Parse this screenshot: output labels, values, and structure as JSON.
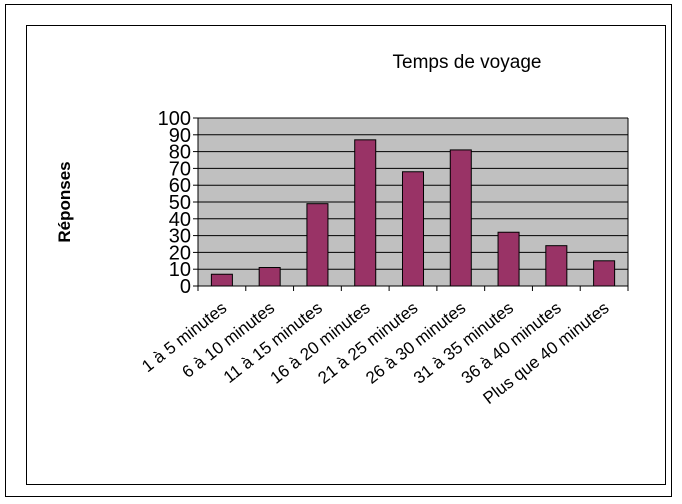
{
  "chart_data": {
    "type": "bar",
    "title": "Temps de voyage",
    "xlabel": "",
    "ylabel": "Réponses",
    "categories": [
      "1 à 5 minutes",
      "6 à 10 minutes",
      "11 à 15 minutes",
      "16 à 20 minutes",
      "21 à 25 minutes",
      "26 à 30 minutes",
      "31 à 35 minutes",
      "36 à 40 minutes",
      "Plus que 40 minutes"
    ],
    "values": [
      7,
      11,
      49,
      87,
      68,
      81,
      32,
      24,
      15
    ],
    "ylim": [
      0,
      100
    ],
    "yticks": [
      "0",
      "10",
      "20",
      "30",
      "40",
      "50",
      "60",
      "70",
      "80",
      "90",
      "100"
    ],
    "grid": true,
    "legend": "none",
    "colors": {
      "bar": "#993366",
      "plot_background": "#c0c0c0",
      "gridline": "#000000"
    }
  }
}
